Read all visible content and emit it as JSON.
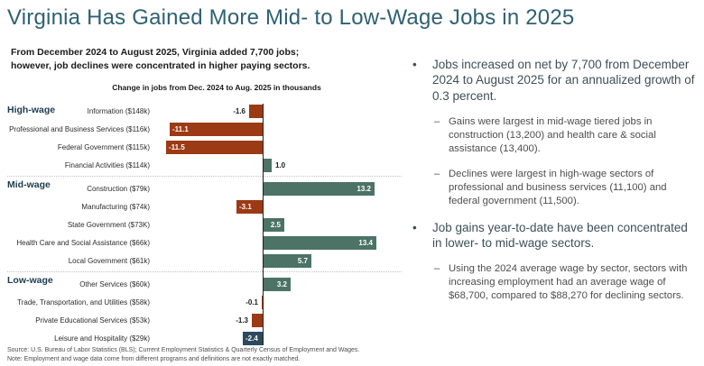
{
  "title": "Virginia Has Gained More Mid- to Low-Wage Jobs in 2025",
  "subtitle": {
    "line1": "From December 2024 to August 2025, Virginia added 7,700 jobs;",
    "line2": "however, job declines were concentrated in higher paying sectors."
  },
  "colors": {
    "title_accent": "#2e6173",
    "tier_label": "#1d3c50",
    "bar_negative": "#9c3a15",
    "bar_positive": "#4c7365",
    "bar_highlight": "#2c4a5f"
  },
  "chart_data": {
    "type": "bar",
    "orientation": "horizontal",
    "title": "Change in jobs from Dec. 2024 to Aug. 2025 in thousands",
    "unit": "thousands of jobs",
    "xlim": [
      -11.5,
      13.4
    ],
    "grid": false,
    "groups": [
      {
        "tier": "High-wage",
        "rows": [
          {
            "label": "Information ($148k)",
            "value": -1.6,
            "display": "-1.6",
            "color": "bar_negative",
            "value_inside": false
          },
          {
            "label": "Professional and Business Services ($116k)",
            "value": -11.1,
            "display": "-11.1",
            "color": "bar_negative",
            "value_inside": true
          },
          {
            "label": "Federal Government ($115k)",
            "value": -11.5,
            "display": "-11.5",
            "color": "bar_negative",
            "value_inside": true
          },
          {
            "label": "Financial Activities ($114k)",
            "value": 1.0,
            "display": "1.0",
            "color": "bar_positive",
            "value_inside": false
          }
        ]
      },
      {
        "tier": "Mid-wage",
        "rows": [
          {
            "label": "Construction ($79k)",
            "value": 13.2,
            "display": "13.2",
            "color": "bar_positive",
            "value_inside": true
          },
          {
            "label": "Manufacturing ($74k)",
            "value": -3.1,
            "display": "-3.1",
            "color": "bar_negative",
            "value_inside": true
          },
          {
            "label": "State Government ($73K)",
            "value": 2.5,
            "display": "2.5",
            "color": "bar_positive",
            "value_inside": true
          },
          {
            "label": "Health Care and Social Assistance ($66k)",
            "value": 13.4,
            "display": "13.4",
            "color": "bar_positive",
            "value_inside": true
          },
          {
            "label": "Local Government ($61k)",
            "value": 5.7,
            "display": "5.7",
            "color": "bar_positive",
            "value_inside": true
          }
        ]
      },
      {
        "tier": "Low-wage",
        "rows": [
          {
            "label": "Other Services ($60k)",
            "value": 3.2,
            "display": "3.2",
            "color": "bar_positive",
            "value_inside": true
          },
          {
            "label": "Trade, Transportation, and Utilities ($58k)",
            "value": -0.1,
            "display": "-0.1",
            "color": "bar_negative",
            "value_inside": false
          },
          {
            "label": "Private Educational Services ($53k)",
            "value": -1.3,
            "display": "-1.3",
            "color": "bar_negative",
            "value_inside": false
          },
          {
            "label": "Leisure and Hospitality ($29k)",
            "value": -2.4,
            "display": "-2.4",
            "color": "bar_highlight",
            "value_inside": true
          }
        ]
      }
    ]
  },
  "bullets": [
    {
      "level": 1,
      "text": "Jobs increased on net by 7,700 from December 2024 to August 2025 for an annualized growth of 0.3 percent."
    },
    {
      "level": 2,
      "text": "Gains were largest in mid-wage tiered jobs in construction (13,200) and health care & social assistance (13,400)."
    },
    {
      "level": 2,
      "text": "Declines were largest in high-wage sectors of professional and business services (11,100) and federal government (11,500)."
    },
    {
      "level": 1,
      "text": "Job gains year-to-date have been concentrated in lower- to mid-wage sectors."
    },
    {
      "level": 2,
      "text": "Using the 2024 average wage by sector, sectors with increasing employment had an average wage of $68,700, compared to $88,270 for declining sectors."
    }
  ],
  "markers": {
    "level1": "•",
    "level2": "–"
  },
  "footer": {
    "source": "Source: U.S. Bureau of Labor Statistics (BLS); Current Employment Statistics & Quarterly Census of Employment and Wages.",
    "note": "Note: Employment and wage data come from different programs and definitions are not exactly matched."
  }
}
